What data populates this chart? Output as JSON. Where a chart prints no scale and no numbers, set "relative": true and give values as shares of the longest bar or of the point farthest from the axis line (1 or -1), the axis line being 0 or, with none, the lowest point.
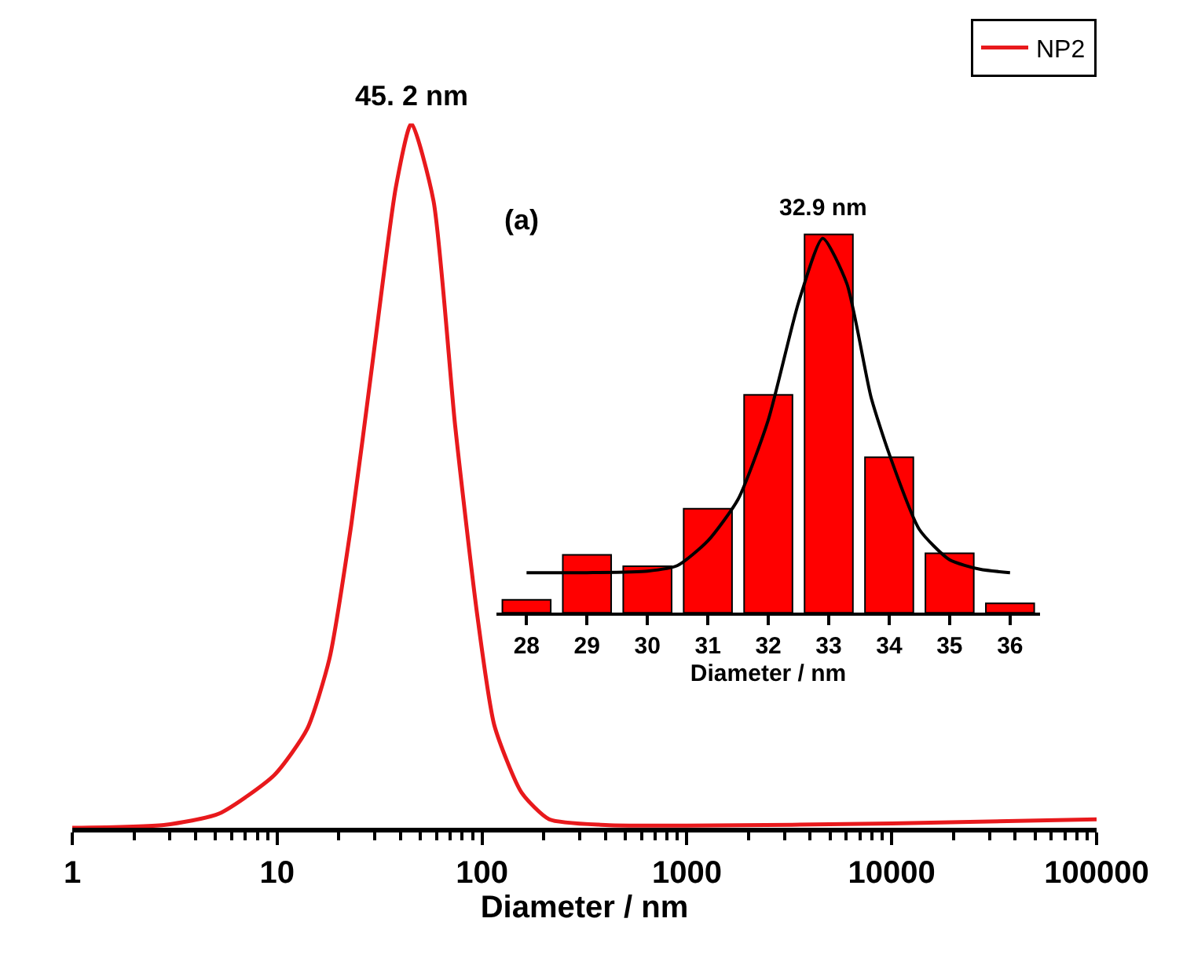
{
  "chart_data": [
    {
      "type": "line",
      "relative": true,
      "log": "x",
      "xlabel": "Diameter / nm",
      "xlim": [
        1,
        100000
      ],
      "xticks": [
        1,
        10,
        100,
        1000,
        10000,
        100000
      ],
      "legend": "top right",
      "marker": "none",
      "line_style": "solid",
      "annotations": [
        {
          "text": "45. 2 nm",
          "x": 45.2,
          "y": 1
        }
      ],
      "series": [
        {
          "name": "NP2",
          "color": "#e8191c",
          "x": [
            1,
            2.8,
            5.2,
            9.7,
            14,
            18,
            23,
            29.5,
            38,
            45.2,
            58,
            74,
            95,
            115,
            156,
            213,
            400,
            1000,
            10000,
            100000
          ],
          "values": [
            0,
            0.004,
            0.02,
            0.075,
            0.14,
            0.24,
            0.43,
            0.67,
            0.91,
            1,
            0.89,
            0.57,
            0.3,
            0.145,
            0.05,
            0.012,
            0.004,
            0.003,
            0.006,
            0.012
          ]
        }
      ]
    },
    {
      "type": "bar",
      "relative": true,
      "xlabel": "Diameter / nm",
      "xlim": [
        27.5,
        36.5
      ],
      "xticks": [
        28,
        29,
        30,
        31,
        32,
        33,
        34,
        35,
        36
      ],
      "annotations": [
        "(a)",
        {
          "text": "32.9 nm",
          "x": 32.9,
          "y": 1
        }
      ],
      "series": [
        {
          "type": "bar",
          "color": "#ff0000",
          "x": [
            28,
            29,
            30,
            31,
            32,
            33,
            34,
            35,
            36
          ],
          "values": [
            0.034,
            0.153,
            0.123,
            0.275,
            0.576,
            1,
            0.411,
            0.157,
            0.025
          ]
        },
        {
          "type": "line",
          "color": "#000000",
          "x": [
            28,
            29,
            30,
            30.5,
            31,
            31.5,
            32,
            32.5,
            32.9,
            33.3,
            33.7,
            34,
            34.5,
            35,
            35.5,
            36
          ],
          "values": [
            0.106,
            0.106,
            0.11,
            0.125,
            0.19,
            0.3,
            0.51,
            0.82,
            0.99,
            0.87,
            0.57,
            0.42,
            0.22,
            0.14,
            0.115,
            0.106
          ]
        }
      ]
    }
  ]
}
